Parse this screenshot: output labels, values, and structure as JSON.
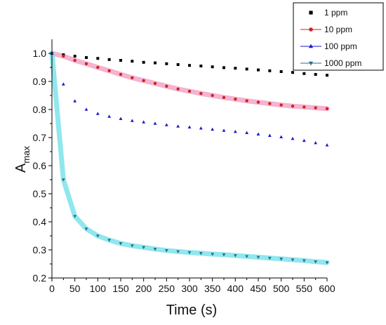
{
  "chart_data": {
    "type": "scatter",
    "title": "",
    "xlabel": "Time (s)",
    "ylabel_main": "A",
    "ylabel_sub": "max",
    "xlim": [
      0,
      600
    ],
    "ylim": [
      0.2,
      1.05
    ],
    "x_ticks": [
      0,
      50,
      100,
      150,
      200,
      250,
      300,
      350,
      400,
      450,
      500,
      550,
      600
    ],
    "y_ticks": [
      0.2,
      0.3,
      0.4,
      0.5,
      0.6,
      0.7,
      0.8,
      0.9,
      1.0
    ],
    "y_tick_labels": [
      "0.2",
      "0.3",
      "0.4",
      "0.5",
      "0.6",
      "0.7",
      "0.8",
      "0.9",
      "1.0"
    ],
    "legend_position": "top-right",
    "grid": false,
    "x": [
      0,
      25,
      50,
      75,
      100,
      125,
      150,
      175,
      200,
      225,
      250,
      275,
      300,
      325,
      350,
      375,
      400,
      425,
      450,
      475,
      500,
      525,
      550,
      575,
      600
    ],
    "series": [
      {
        "name": "1 ppm",
        "color": "#000000",
        "marker": "square",
        "values": [
          1.0,
          0.995,
          0.99,
          0.985,
          0.982,
          0.978,
          0.975,
          0.972,
          0.968,
          0.966,
          0.963,
          0.96,
          0.957,
          0.955,
          0.952,
          0.949,
          0.947,
          0.944,
          0.941,
          0.938,
          0.935,
          0.932,
          0.928,
          0.925,
          0.922
        ]
      },
      {
        "name": "10 ppm",
        "color": "#d42020",
        "marker": "circle",
        "band_color": "#f2a6c8",
        "values": [
          1.0,
          0.99,
          0.975,
          0.963,
          0.95,
          0.938,
          0.925,
          0.913,
          0.903,
          0.893,
          0.883,
          0.873,
          0.865,
          0.857,
          0.85,
          0.843,
          0.837,
          0.831,
          0.826,
          0.821,
          0.816,
          0.812,
          0.809,
          0.806,
          0.803
        ]
      },
      {
        "name": "100 ppm",
        "color": "#1a1ad0",
        "marker": "triangle-up",
        "values": [
          1.0,
          0.89,
          0.83,
          0.8,
          0.785,
          0.775,
          0.767,
          0.76,
          0.755,
          0.75,
          0.745,
          0.74,
          0.737,
          0.733,
          0.729,
          0.725,
          0.721,
          0.717,
          0.712,
          0.707,
          0.702,
          0.696,
          0.689,
          0.681,
          0.673
        ]
      },
      {
        "name": "1000 ppm",
        "color": "#2a6f8a",
        "marker": "triangle-down",
        "band_color": "#7de3ea",
        "values": [
          1.0,
          0.55,
          0.42,
          0.375,
          0.35,
          0.335,
          0.323,
          0.315,
          0.309,
          0.303,
          0.298,
          0.294,
          0.291,
          0.288,
          0.285,
          0.283,
          0.28,
          0.277,
          0.274,
          0.271,
          0.268,
          0.265,
          0.262,
          0.258,
          0.255
        ]
      }
    ]
  }
}
